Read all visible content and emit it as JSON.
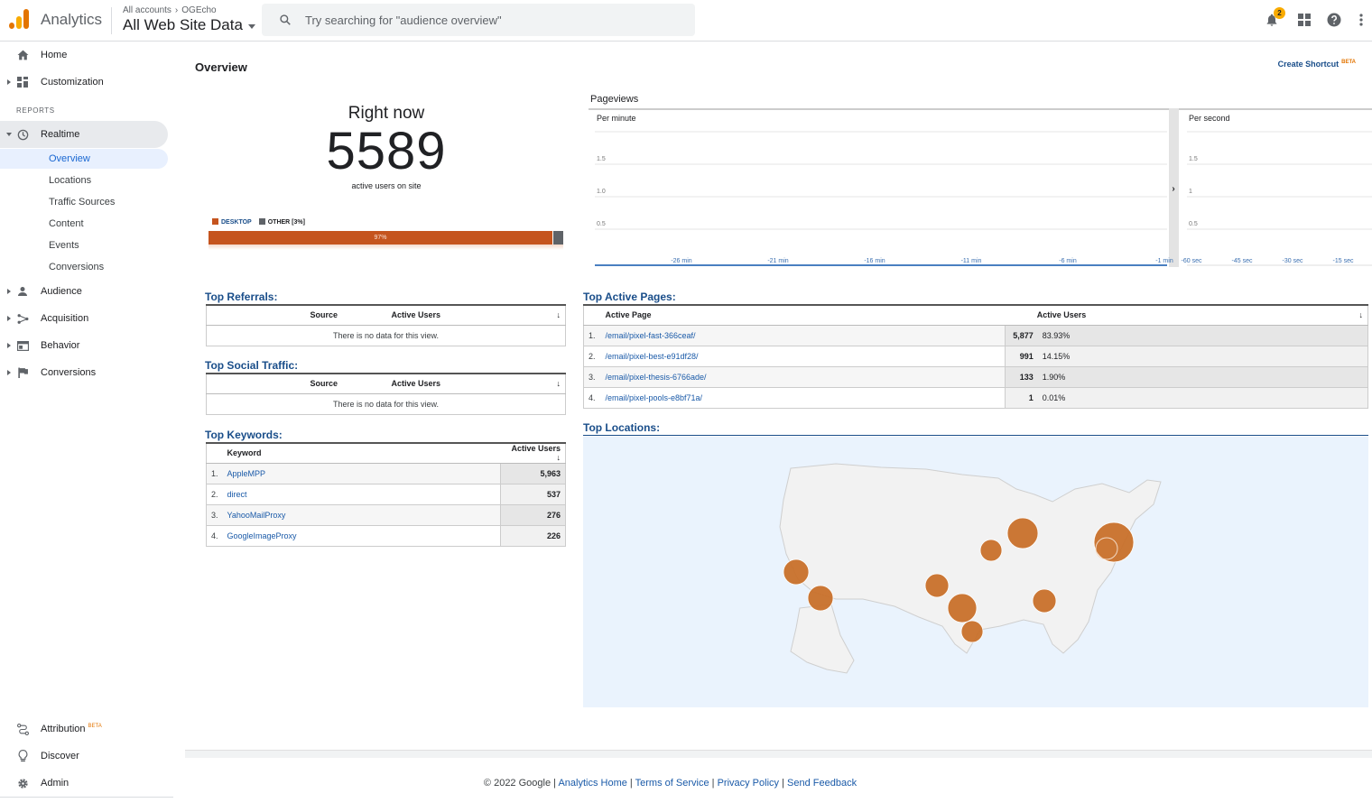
{
  "header": {
    "app_name": "Analytics",
    "crumb_account": "All accounts",
    "crumb_property": "OGEcho",
    "view_name": "All Web Site Data",
    "search_placeholder": "Try searching for \"audience overview\"",
    "notification_count": "2"
  },
  "sidebar": {
    "home": "Home",
    "customization": "Customization",
    "reports_label": "REPORTS",
    "realtime": "Realtime",
    "realtime_items": [
      "Overview",
      "Locations",
      "Traffic Sources",
      "Content",
      "Events",
      "Conversions"
    ],
    "audience": "Audience",
    "acquisition": "Acquisition",
    "behavior": "Behavior",
    "conversions": "Conversions",
    "attribution": "Attribution",
    "attribution_badge": "BETA",
    "discover": "Discover",
    "admin": "Admin"
  },
  "page": {
    "title": "Overview",
    "shortcut": "Create Shortcut",
    "shortcut_badge": "BETA"
  },
  "right_now": {
    "title": "Right now",
    "count": "5589",
    "subtitle": "active users on site",
    "legend_desktop": "DESKTOP",
    "legend_other": "OTHER [3%]",
    "desktop_pct_label": "97%",
    "desktop_fraction": 0.97,
    "colors": {
      "desktop": "#c5541e",
      "other": "#5f6368"
    }
  },
  "chart_data": {
    "type": "line",
    "title": "Pageviews",
    "panels": [
      {
        "label": "Per minute",
        "x_ticks": [
          "-26 min",
          "-21 min",
          "-16 min",
          "-11 min",
          "-6 min",
          "-1 min"
        ],
        "y_ticks": [
          "0.5",
          "1.0",
          "1.5"
        ],
        "ylim": [
          0,
          2
        ],
        "values": []
      },
      {
        "label": "Per second",
        "x_ticks": [
          "-60 sec",
          "-45 sec",
          "-30 sec",
          "-15 sec"
        ],
        "y_ticks": [
          "0.5",
          "1",
          "1.5"
        ],
        "ylim": [
          0,
          2
        ],
        "values": []
      }
    ],
    "grid": true
  },
  "referrals": {
    "title": "Top Referrals:",
    "columns": [
      "Source",
      "Active Users"
    ],
    "empty": "There is no data for this view."
  },
  "social": {
    "title": "Top Social Traffic:",
    "columns": [
      "Source",
      "Active Users"
    ],
    "empty": "There is no data for this view."
  },
  "keywords": {
    "title": "Top Keywords:",
    "columns": [
      "Keyword",
      "Active Users"
    ],
    "rows": [
      {
        "idx": "1.",
        "keyword": "AppleMPP",
        "users": "5,963"
      },
      {
        "idx": "2.",
        "keyword": "direct",
        "users": "537"
      },
      {
        "idx": "3.",
        "keyword": "YahooMailProxy",
        "users": "276"
      },
      {
        "idx": "4.",
        "keyword": "GoogleImageProxy",
        "users": "226"
      }
    ]
  },
  "active_pages": {
    "title": "Top Active Pages:",
    "columns": [
      "Active Page",
      "Active Users"
    ],
    "rows": [
      {
        "idx": "1.",
        "page": "/email/pixel-fast-366ceaf/",
        "users": "5,877",
        "pct": "83.93%"
      },
      {
        "idx": "2.",
        "page": "/email/pixel-best-e91df28/",
        "users": "991",
        "pct": "14.15%"
      },
      {
        "idx": "3.",
        "page": "/email/pixel-thesis-6766ade/",
        "users": "133",
        "pct": "1.90%"
      },
      {
        "idx": "4.",
        "page": "/email/pixel-pools-e8bf71a/",
        "users": "1",
        "pct": "0.01%"
      }
    ]
  },
  "locations": {
    "title": "Top Locations:",
    "bubble_color": "#c8702a"
  },
  "footer": {
    "copyright": "© 2022 Google |",
    "links": [
      "Analytics Home",
      "Terms of Service",
      "Privacy Policy",
      "Send Feedback"
    ]
  }
}
